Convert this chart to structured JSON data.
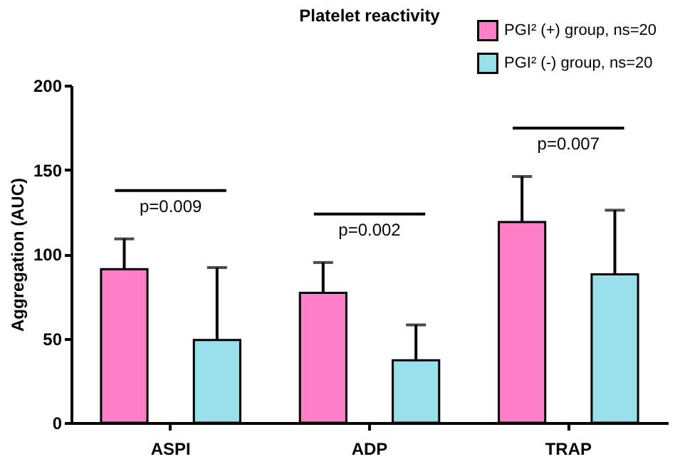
{
  "chart_data": {
    "type": "bar",
    "title": "Platelet reactivity",
    "ylabel": "Aggregation (AUC)",
    "categories": [
      "ASPI",
      "ADP",
      "TRAP"
    ],
    "series": [
      {
        "name": "PGI² (+) group, ns=20",
        "color": "#ff80c8",
        "values": [
          91,
          77,
          119
        ],
        "errors": [
          [
            91,
            109
          ],
          [
            77,
            95
          ],
          [
            119,
            146
          ]
        ]
      },
      {
        "name": "PGI² (-) group, ns=20",
        "color": "#99e0ec",
        "values": [
          49,
          37,
          88
        ],
        "errors": [
          [
            49,
            92
          ],
          [
            37,
            58
          ],
          [
            88,
            126
          ]
        ]
      }
    ],
    "ylim": [
      0,
      200
    ],
    "yticks": [
      0,
      50,
      100,
      150,
      200
    ],
    "grid": false,
    "legend": "top right",
    "annotations": [
      "p=0.009",
      "p=0.002",
      "p=0.007"
    ]
  }
}
